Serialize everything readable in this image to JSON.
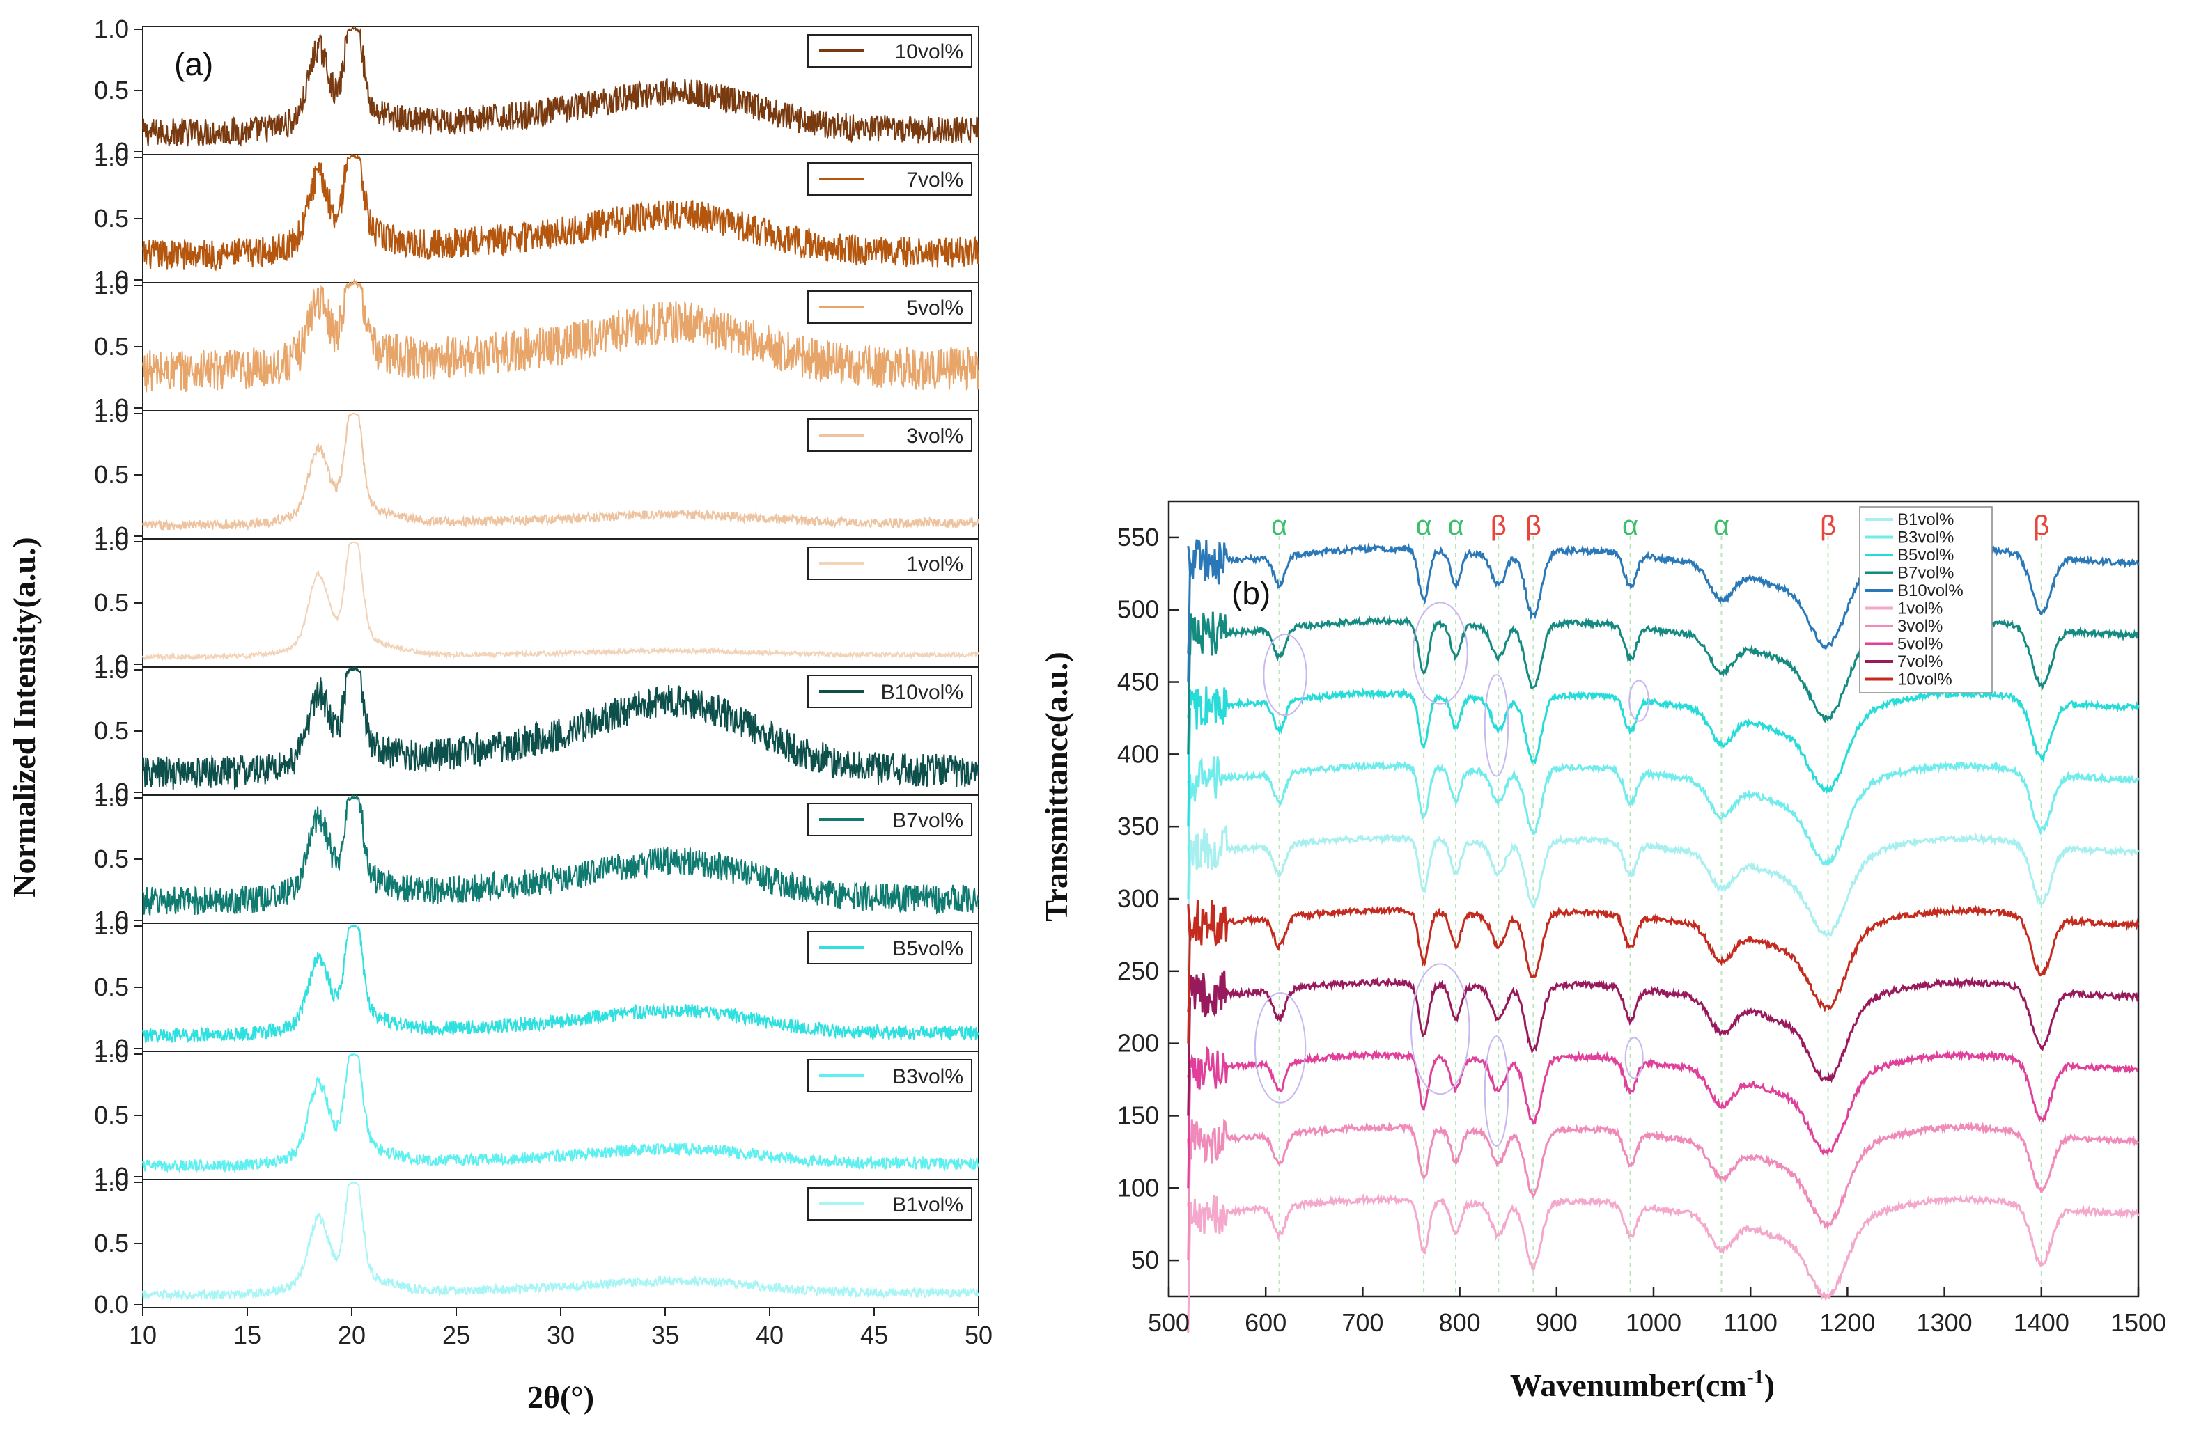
{
  "chart_data": [
    {
      "panel": "(a)",
      "type": "line",
      "xlabel": "2θ(°)",
      "ylabel": "Normalized Intensity(a.u.)",
      "xlim": [
        10,
        50
      ],
      "xticks": [
        "10",
        "15",
        "20",
        "25",
        "30",
        "35",
        "40",
        "45",
        "50"
      ],
      "yticks_per_panel": [
        "1.0",
        "0.5",
        "1.0"
      ],
      "yticks_bottom_panel": [
        "1.0",
        "0.5",
        "0.0"
      ],
      "peaks_2theta": [
        18.4,
        20.1,
        35.8
      ],
      "series": [
        {
          "name": "10vol%",
          "color": "#7a3a10",
          "peak_ratio_18_20": 0.55,
          "baseline": 0.15,
          "broad": 0.25,
          "noise": 0.12
        },
        {
          "name": "7vol%",
          "color": "#b5560f",
          "peak_ratio_18_20": 0.5,
          "baseline": 0.2,
          "broad": 0.25,
          "noise": 0.13
        },
        {
          "name": "5vol%",
          "color": "#e8a56a",
          "peak_ratio_18_20": 0.45,
          "baseline": 0.3,
          "broad": 0.3,
          "noise": 0.18
        },
        {
          "name": "3vol%",
          "color": "#eec4a0",
          "peak_ratio_18_20": 0.5,
          "baseline": 0.08,
          "broad": 0.06,
          "noise": 0.04
        },
        {
          "name": "1vol%",
          "color": "#f2d4ba",
          "peak_ratio_18_20": 0.55,
          "baseline": 0.05,
          "broad": 0.03,
          "noise": 0.02
        },
        {
          "name": "B10vol%",
          "color": "#0d4f4a",
          "peak_ratio_18_20": 0.5,
          "baseline": 0.15,
          "broad": 0.45,
          "noise": 0.14
        },
        {
          "name": "B7vol%",
          "color": "#0e7a70",
          "peak_ratio_18_20": 0.55,
          "baseline": 0.15,
          "broad": 0.25,
          "noise": 0.12
        },
        {
          "name": "B5vol%",
          "color": "#2ee0df",
          "peak_ratio_18_20": 0.5,
          "baseline": 0.1,
          "broad": 0.15,
          "noise": 0.06
        },
        {
          "name": "B3vol%",
          "color": "#5ef0f0",
          "peak_ratio_18_20": 0.55,
          "baseline": 0.08,
          "broad": 0.1,
          "noise": 0.05
        },
        {
          "name": "B1vol%",
          "color": "#a8f5f5",
          "peak_ratio_18_20": 0.5,
          "baseline": 0.07,
          "broad": 0.08,
          "noise": 0.04
        }
      ]
    },
    {
      "panel": "(b)",
      "type": "line",
      "xlabel": "Wavenumber(cm",
      "xlabel_sup": "-1",
      "xlabel_end": ")",
      "ylabel": "Transmittance(a.u.)",
      "xlim": [
        500,
        1500
      ],
      "ylim": [
        25,
        575
      ],
      "xticks": [
        "500",
        "600",
        "700",
        "800",
        "900",
        "1000",
        "1100",
        "1200",
        "1300",
        "1400",
        "1500"
      ],
      "yticks": [
        "50",
        "100",
        "150",
        "200",
        "250",
        "300",
        "350",
        "400",
        "450",
        "500",
        "550"
      ],
      "series": [
        {
          "name": "B1vol%",
          "color": "#a8f0f0",
          "offset": 350
        },
        {
          "name": "B3vol%",
          "color": "#70ecec",
          "offset": 400
        },
        {
          "name": "B5vol%",
          "color": "#25dcd8",
          "offset": 450
        },
        {
          "name": "B7vol%",
          "color": "#148a80",
          "offset": 500
        },
        {
          "name": "B10vol%",
          "color": "#2a78b8",
          "offset": 550
        },
        {
          "name": "1vol%",
          "color": "#f4a8cc",
          "offset": 100
        },
        {
          "name": "3vol%",
          "color": "#f08ab8",
          "offset": 150
        },
        {
          "name": "5vol%",
          "color": "#e0409a",
          "offset": 200
        },
        {
          "name": "7vol%",
          "color": "#991a5c",
          "offset": 250
        },
        {
          "name": "10vol%",
          "color": "#c42a1e",
          "offset": 300
        }
      ],
      "band_markers": [
        {
          "label": "α",
          "wavenumber": 614,
          "color": "#3cbf6a"
        },
        {
          "label": "α",
          "wavenumber": 763,
          "color": "#3cbf6a"
        },
        {
          "label": "α",
          "wavenumber": 796,
          "color": "#3cbf6a"
        },
        {
          "label": "β",
          "wavenumber": 840,
          "color": "#e8443c"
        },
        {
          "label": "β",
          "wavenumber": 876,
          "color": "#e8443c"
        },
        {
          "label": "α",
          "wavenumber": 976,
          "color": "#3cbf6a"
        },
        {
          "label": "α",
          "wavenumber": 1070,
          "color": "#3cbf6a"
        },
        {
          "label": "β",
          "wavenumber": 1180,
          "color": "#e8443c"
        },
        {
          "label": "β",
          "wavenumber": 1400,
          "color": "#e8443c"
        }
      ]
    }
  ]
}
